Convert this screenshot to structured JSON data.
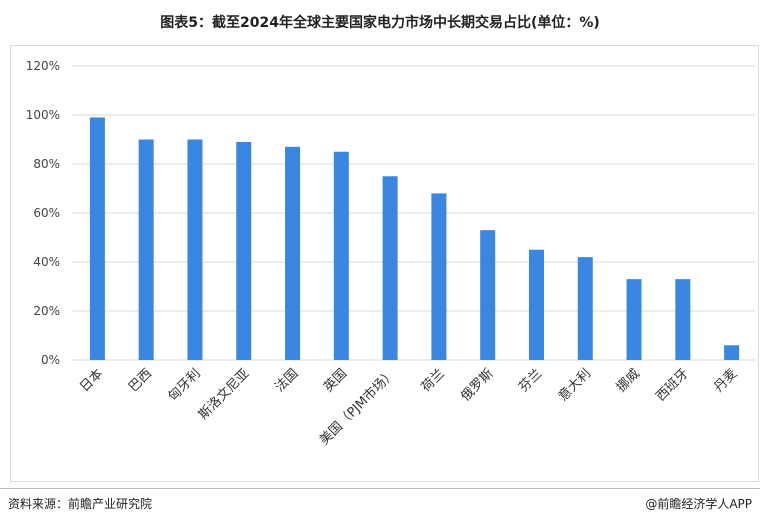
{
  "title": "图表5：截至2024年全球主要国家电力市场中长期交易占比(单位：%)",
  "source": "资料来源：前瞻产业研究院",
  "credit": "@前瞻经济学人APP",
  "chart_data": {
    "type": "bar",
    "categories": [
      "日本",
      "巴西",
      "匈牙利",
      "斯洛文尼亚",
      "法国",
      "英国",
      "美国（PJM市场）",
      "荷兰",
      "俄罗斯",
      "芬兰",
      "意大利",
      "挪威",
      "西班牙",
      "丹麦"
    ],
    "values": [
      99,
      90,
      90,
      89,
      87,
      85,
      75,
      68,
      53,
      45,
      42,
      33,
      33,
      6
    ],
    "ylim": [
      0,
      120
    ],
    "yticks": [
      "0%",
      "20%",
      "40%",
      "60%",
      "80%",
      "100%",
      "120%"
    ],
    "grid": true,
    "color": "#3a86e0"
  }
}
